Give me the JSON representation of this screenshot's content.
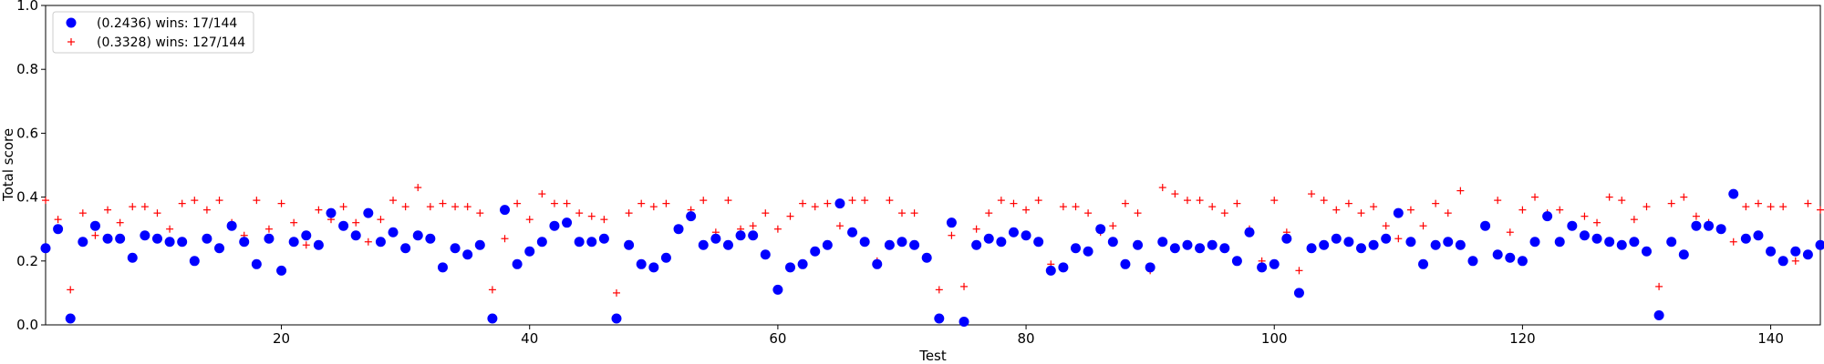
{
  "chart_data": {
    "type": "scatter",
    "xlabel": "Test",
    "ylabel": "Total score",
    "xlim": [
      1,
      144
    ],
    "ylim": [
      0,
      1.0
    ],
    "xticks": [
      20,
      40,
      60,
      80,
      100,
      120,
      140
    ],
    "yticks": [
      0.0,
      0.2,
      0.4,
      0.6,
      0.8,
      1.0
    ],
    "xtick_labels": [
      "20",
      "40",
      "60",
      "80",
      "100",
      "120",
      "140"
    ],
    "ytick_labels": [
      "0.0",
      "0.2",
      "0.4",
      "0.6",
      "0.8",
      "1.0"
    ],
    "grid": false,
    "legend_position": "top-left",
    "x": [
      1,
      2,
      3,
      4,
      5,
      6,
      7,
      8,
      9,
      10,
      11,
      12,
      13,
      14,
      15,
      16,
      17,
      18,
      19,
      20,
      21,
      22,
      23,
      24,
      25,
      26,
      27,
      28,
      29,
      30,
      31,
      32,
      33,
      34,
      35,
      36,
      37,
      38,
      39,
      40,
      41,
      42,
      43,
      44,
      45,
      46,
      47,
      48,
      49,
      50,
      51,
      52,
      53,
      54,
      55,
      56,
      57,
      58,
      59,
      60,
      61,
      62,
      63,
      64,
      65,
      66,
      67,
      68,
      69,
      70,
      71,
      72,
      73,
      74,
      75,
      76,
      77,
      78,
      79,
      80,
      81,
      82,
      83,
      84,
      85,
      86,
      87,
      88,
      89,
      90,
      91,
      92,
      93,
      94,
      95,
      96,
      97,
      98,
      99,
      100,
      101,
      102,
      103,
      104,
      105,
      106,
      107,
      108,
      109,
      110,
      111,
      112,
      113,
      114,
      115,
      116,
      117,
      118,
      119,
      120,
      121,
      122,
      123,
      124,
      125,
      126,
      127,
      128,
      129,
      130,
      131,
      132,
      133,
      134,
      135,
      136,
      137,
      138,
      139,
      140,
      141,
      142,
      143,
      144
    ],
    "series": [
      {
        "name": "(0.2436) wins: 17/144",
        "color": "#0000ff",
        "marker": "circle",
        "values": [
          0.24,
          0.3,
          0.02,
          0.26,
          0.31,
          0.27,
          0.27,
          0.21,
          0.28,
          0.27,
          0.26,
          0.26,
          0.2,
          0.27,
          0.24,
          0.31,
          0.26,
          0.19,
          0.27,
          0.17,
          0.26,
          0.28,
          0.25,
          0.35,
          0.31,
          0.28,
          0.35,
          0.26,
          0.29,
          0.24,
          0.28,
          0.27,
          0.18,
          0.24,
          0.22,
          0.25,
          0.02,
          0.36,
          0.19,
          0.23,
          0.26,
          0.31,
          0.32,
          0.26,
          0.26,
          0.27,
          0.02,
          0.25,
          0.19,
          0.18,
          0.21,
          0.3,
          0.34,
          0.25,
          0.27,
          0.25,
          0.28,
          0.28,
          0.22,
          0.11,
          0.18,
          0.19,
          0.23,
          0.25,
          0.38,
          0.29,
          0.26,
          0.19,
          0.25,
          0.26,
          0.25,
          0.21,
          0.02,
          0.32,
          0.01,
          0.25,
          0.27,
          0.26,
          0.29,
          0.28,
          0.26,
          0.17,
          0.18,
          0.24,
          0.23,
          0.3,
          0.26,
          0.19,
          0.25,
          0.18,
          0.26,
          0.24,
          0.25,
          0.24,
          0.25,
          0.24,
          0.2,
          0.29,
          0.18,
          0.19,
          0.27,
          0.1,
          0.24,
          0.25,
          0.27,
          0.26,
          0.24,
          0.25,
          0.27,
          0.35,
          0.26,
          0.19,
          0.25,
          0.26,
          0.25,
          0.2,
          0.31,
          0.22,
          0.21,
          0.2,
          0.26,
          0.34,
          0.26,
          0.31,
          0.28,
          0.27,
          0.26,
          0.25,
          0.26,
          0.23,
          0.03,
          0.26,
          0.22,
          0.31,
          0.31,
          0.3,
          0.41,
          0.27,
          0.28,
          0.23,
          0.2,
          0.23,
          0.22,
          0.25
        ]
      },
      {
        "name": "(0.3328) wins: 127/144",
        "color": "#ff0000",
        "marker": "plus",
        "values": [
          0.39,
          0.33,
          0.11,
          0.35,
          0.28,
          0.36,
          0.32,
          0.37,
          0.37,
          0.35,
          0.3,
          0.38,
          0.39,
          0.36,
          0.39,
          0.32,
          0.28,
          0.39,
          0.3,
          0.38,
          0.32,
          0.25,
          0.36,
          0.33,
          0.37,
          0.32,
          0.26,
          0.33,
          0.39,
          0.37,
          0.43,
          0.37,
          0.38,
          0.37,
          0.37,
          0.35,
          0.11,
          0.27,
          0.38,
          0.33,
          0.41,
          0.38,
          0.38,
          0.35,
          0.34,
          0.33,
          0.1,
          0.35,
          0.38,
          0.37,
          0.38,
          0.3,
          0.36,
          0.39,
          0.29,
          0.39,
          0.3,
          0.31,
          0.35,
          0.3,
          0.34,
          0.38,
          0.37,
          0.38,
          0.31,
          0.39,
          0.39,
          0.2,
          0.39,
          0.35,
          0.35,
          0.21,
          0.11,
          0.28,
          0.12,
          0.3,
          0.35,
          0.39,
          0.38,
          0.36,
          0.39,
          0.19,
          0.37,
          0.37,
          0.35,
          0.29,
          0.31,
          0.38,
          0.35,
          0.17,
          0.43,
          0.41,
          0.39,
          0.39,
          0.37,
          0.35,
          0.38,
          0.3,
          0.2,
          0.39,
          0.29,
          0.17,
          0.41,
          0.39,
          0.36,
          0.38,
          0.35,
          0.37,
          0.31,
          0.27,
          0.36,
          0.31,
          0.38,
          0.35,
          0.42,
          0.2,
          0.31,
          0.39,
          0.29,
          0.36,
          0.4,
          0.35,
          0.36,
          0.31,
          0.34,
          0.32,
          0.4,
          0.39,
          0.33,
          0.37,
          0.12,
          0.38,
          0.4,
          0.34,
          0.32,
          0.3,
          0.26,
          0.37,
          0.38,
          0.37,
          0.37,
          0.2,
          0.38,
          0.36
        ]
      }
    ]
  }
}
